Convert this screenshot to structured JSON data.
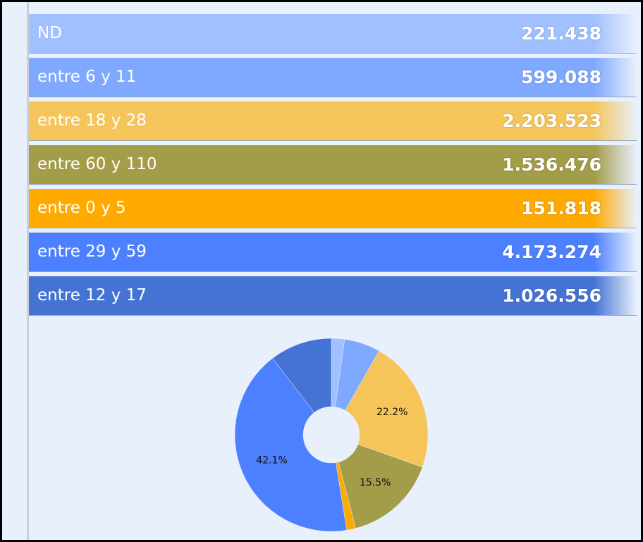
{
  "list": {
    "rows": [
      {
        "label": "ND",
        "value": "221.438"
      },
      {
        "label": "entre 6 y 11",
        "value": "599.088"
      },
      {
        "label": "entre 18 y 28",
        "value": "2.203.523"
      },
      {
        "label": "entre 60 y 110",
        "value": "1.536.476"
      },
      {
        "label": "entre 0 y 5",
        "value": "151.818"
      },
      {
        "label": "entre 29 y 59",
        "value": "4.173.274"
      },
      {
        "label": "entre 12 y 17",
        "value": "1.026.556"
      }
    ]
  },
  "chart_data": {
    "type": "pie",
    "values": [
      2.2,
      6.0,
      22.2,
      15.5,
      1.5,
      42.1,
      10.4
    ],
    "value_labels": [
      null,
      null,
      "22.2%",
      "15.5%",
      null,
      "42.1%",
      null
    ],
    "colors": [
      "#a0c0ff",
      "#7fa8ff",
      "#f5c55a",
      "#a39c48",
      "#ffaa00",
      "#4d80ff",
      "#4573d4"
    ]
  }
}
